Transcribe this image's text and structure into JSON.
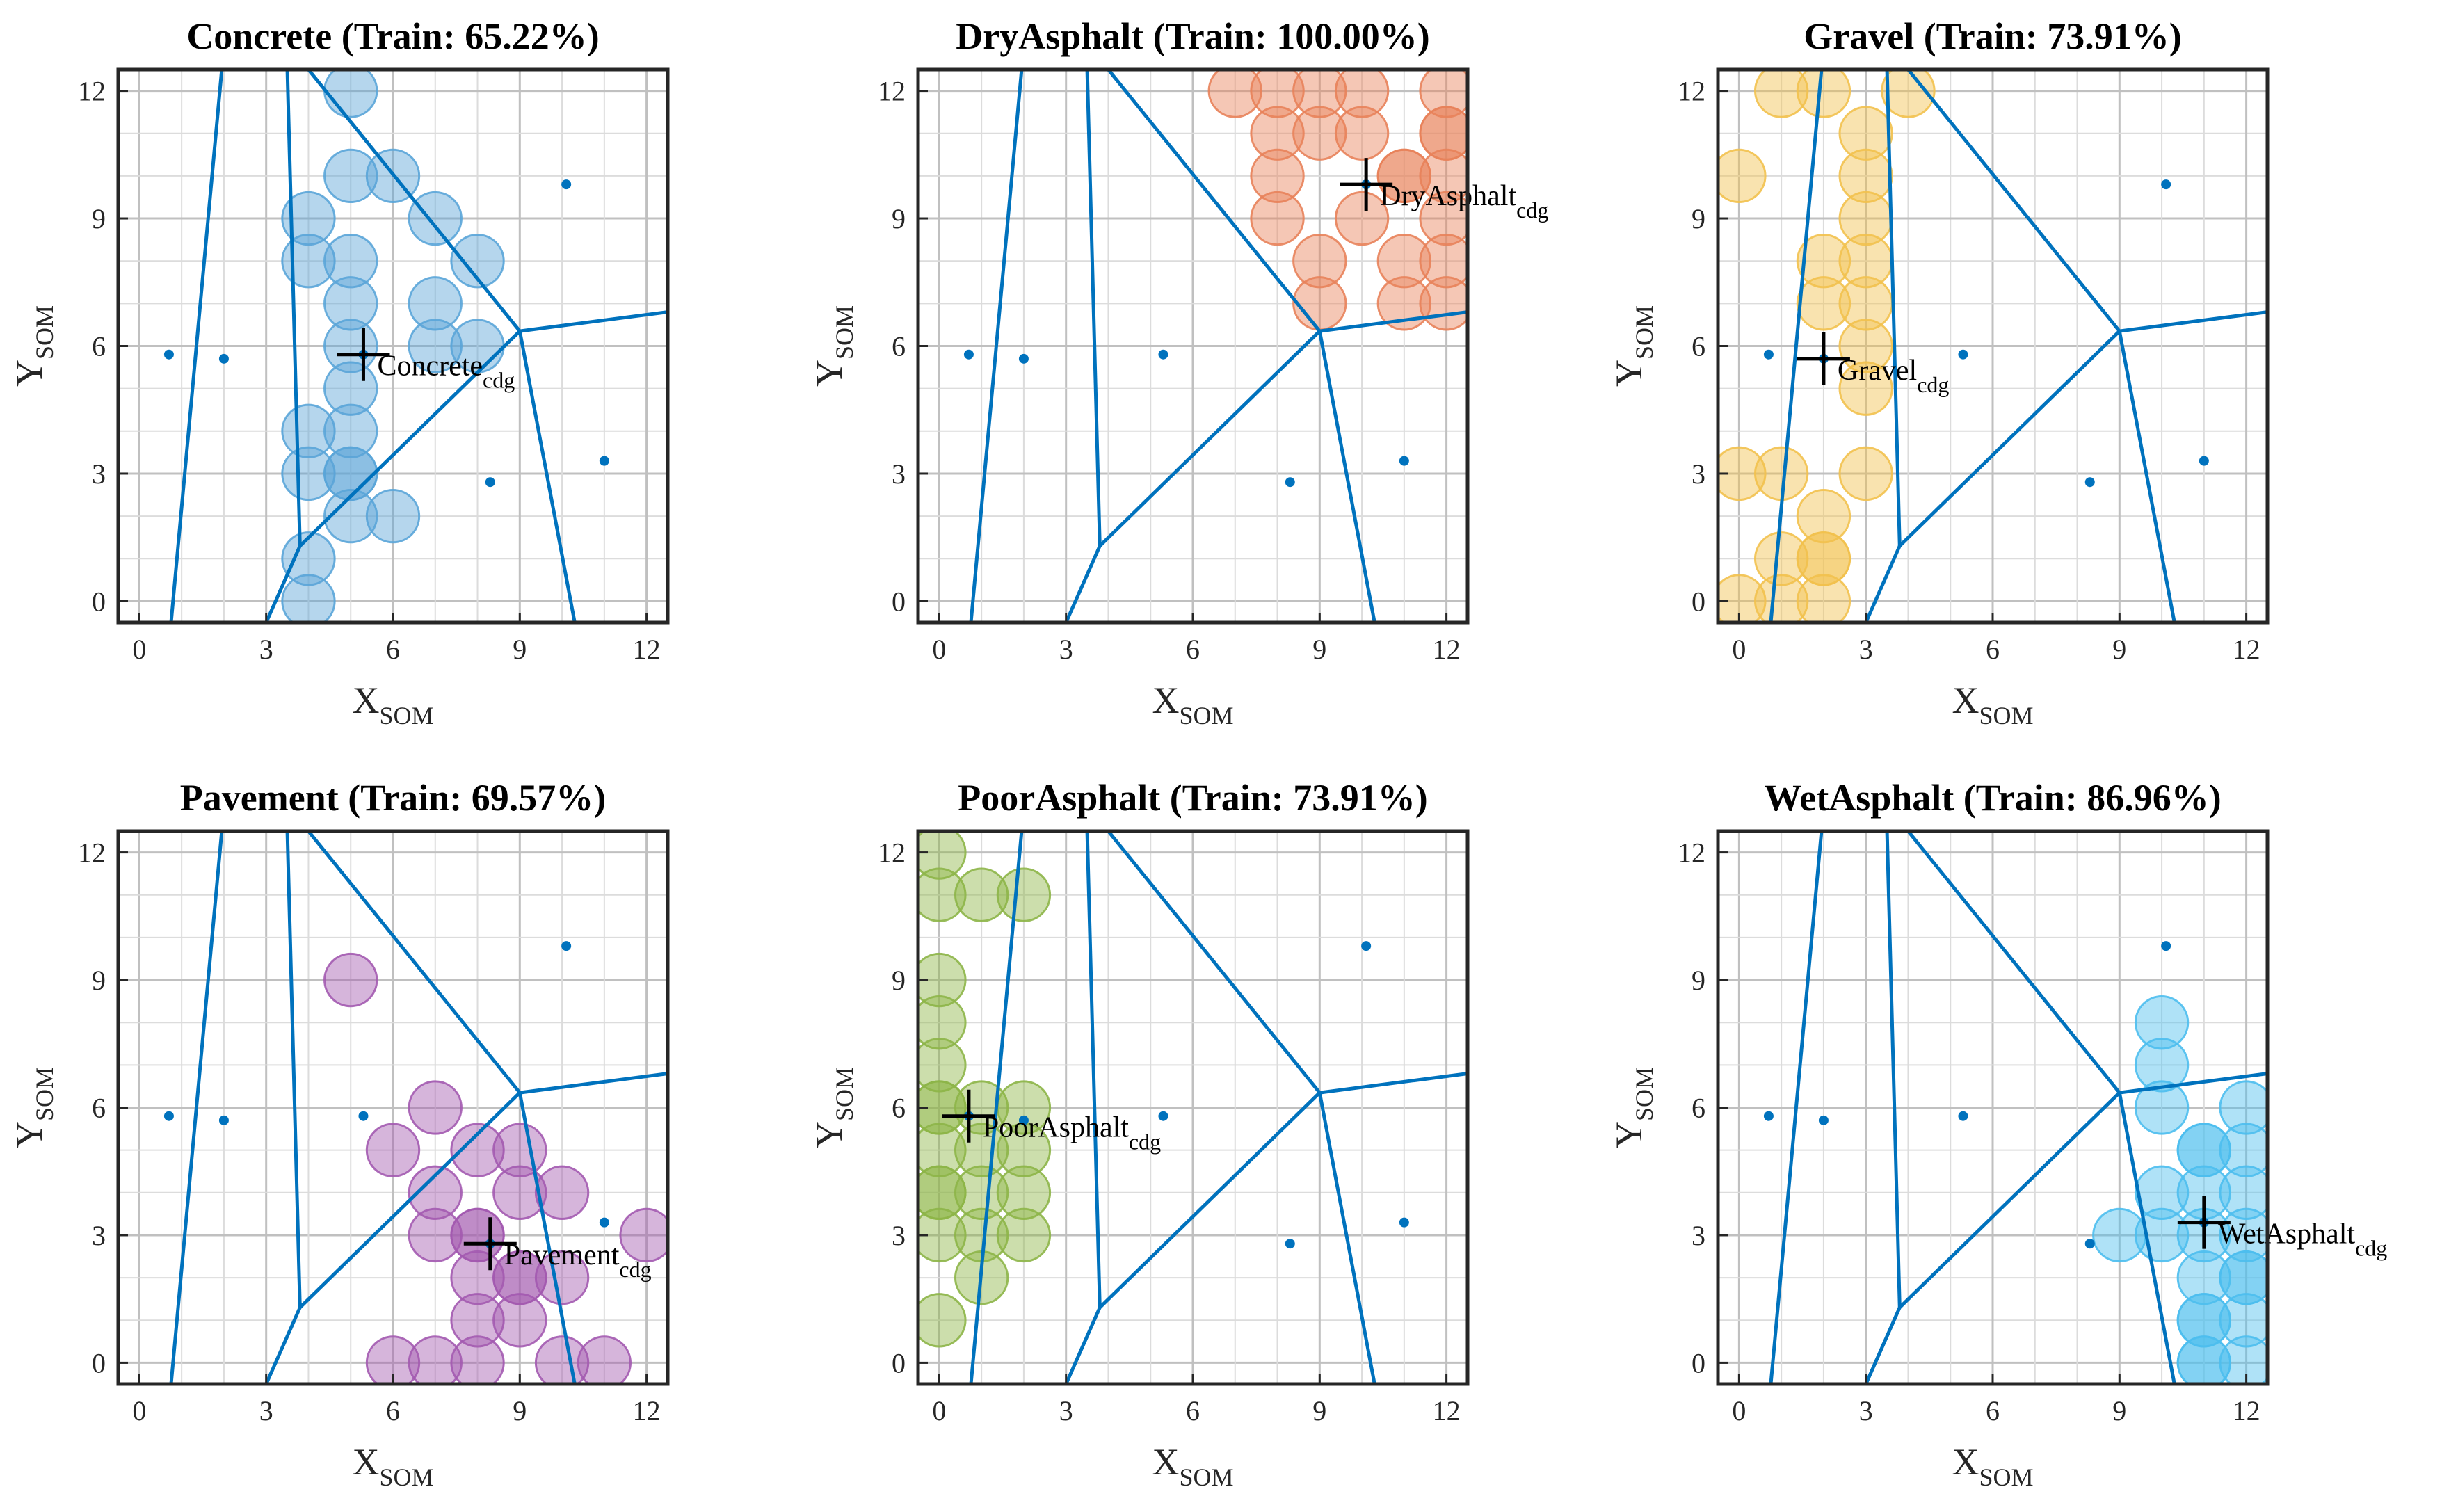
{
  "figure": {
    "x_axis_label": "X",
    "x_axis_sub": "SOM",
    "y_axis_label": "Y",
    "y_axis_sub": "SOM",
    "cdg_sub": "cdg"
  },
  "chart_data": [
    {
      "type": "scatter",
      "title": "Concrete (Train: 65.22%)",
      "series_label": "Concrete",
      "color": "#5AA5D8",
      "xlim": [
        -0.5,
        12.5
      ],
      "ylim": [
        -0.5,
        12.5
      ],
      "xticks": [
        0,
        3,
        6,
        9,
        12
      ],
      "yticks": [
        0,
        3,
        6,
        9,
        12
      ],
      "grid": true,
      "centroid": [
        5.3,
        5.8
      ],
      "points": [
        [
          5,
          12
        ],
        [
          5,
          10
        ],
        [
          6,
          10
        ],
        [
          4,
          9
        ],
        [
          7,
          9
        ],
        [
          4,
          8
        ],
        [
          5,
          8
        ],
        [
          8,
          8
        ],
        [
          5,
          7
        ],
        [
          7,
          7
        ],
        [
          5,
          6
        ],
        [
          7,
          6
        ],
        [
          8,
          6
        ],
        [
          5,
          5
        ],
        [
          4,
          4
        ],
        [
          5,
          4
        ],
        [
          4,
          3
        ],
        [
          5,
          3
        ],
        [
          5,
          3
        ],
        [
          6,
          2
        ],
        [
          5,
          2
        ],
        [
          4,
          1
        ],
        [
          4,
          0
        ]
      ]
    },
    {
      "type": "scatter",
      "title": "DryAsphalt (Train: 100.00%)",
      "series_label": "DryAsphalt",
      "color": "#E8825A",
      "xlim": [
        -0.5,
        12.5
      ],
      "ylim": [
        -0.5,
        12.5
      ],
      "xticks": [
        0,
        3,
        6,
        9,
        12
      ],
      "yticks": [
        0,
        3,
        6,
        9,
        12
      ],
      "grid": true,
      "centroid": [
        10.1,
        9.8
      ],
      "points": [
        [
          7,
          12
        ],
        [
          8,
          12
        ],
        [
          9,
          12
        ],
        [
          10,
          12
        ],
        [
          12,
          12
        ],
        [
          8,
          11
        ],
        [
          9,
          11
        ],
        [
          10,
          11
        ],
        [
          12,
          11
        ],
        [
          12,
          11
        ],
        [
          8,
          10
        ],
        [
          11,
          10
        ],
        [
          11,
          10
        ],
        [
          12,
          10
        ],
        [
          8,
          9
        ],
        [
          10,
          9
        ],
        [
          12,
          9
        ],
        [
          9,
          8
        ],
        [
          11,
          8
        ],
        [
          12,
          8
        ],
        [
          9,
          7
        ],
        [
          11,
          7
        ],
        [
          12,
          7
        ]
      ]
    },
    {
      "type": "scatter",
      "title": "Gravel (Train: 73.91%)",
      "series_label": "Gravel",
      "color": "#F2C14E",
      "xlim": [
        -0.5,
        12.5
      ],
      "ylim": [
        -0.5,
        12.5
      ],
      "xticks": [
        0,
        3,
        6,
        9,
        12
      ],
      "yticks": [
        0,
        3,
        6,
        9,
        12
      ],
      "grid": true,
      "centroid": [
        2.0,
        5.7
      ],
      "points": [
        [
          1,
          12
        ],
        [
          2,
          12
        ],
        [
          4,
          12
        ],
        [
          3,
          11
        ],
        [
          0,
          10
        ],
        [
          3,
          10
        ],
        [
          3,
          9
        ],
        [
          2,
          8
        ],
        [
          3,
          8
        ],
        [
          2,
          7
        ],
        [
          3,
          7
        ],
        [
          3,
          6
        ],
        [
          3,
          5
        ],
        [
          0,
          3
        ],
        [
          1,
          3
        ],
        [
          3,
          3
        ],
        [
          2,
          2
        ],
        [
          1,
          1
        ],
        [
          2,
          1
        ],
        [
          2,
          1
        ],
        [
          0,
          0
        ],
        [
          1,
          0
        ],
        [
          2,
          0
        ]
      ]
    },
    {
      "type": "scatter",
      "title": "Pavement (Train: 69.57%)",
      "series_label": "Pavement",
      "color": "#A35AB0",
      "xlim": [
        -0.5,
        12.5
      ],
      "ylim": [
        -0.5,
        12.5
      ],
      "xticks": [
        0,
        3,
        6,
        9,
        12
      ],
      "yticks": [
        0,
        3,
        6,
        9,
        12
      ],
      "grid": true,
      "centroid": [
        8.3,
        2.8
      ],
      "points": [
        [
          5,
          9
        ],
        [
          7,
          6
        ],
        [
          6,
          5
        ],
        [
          8,
          5
        ],
        [
          9,
          5
        ],
        [
          7,
          4
        ],
        [
          9,
          4
        ],
        [
          10,
          4
        ],
        [
          7,
          3
        ],
        [
          8,
          3
        ],
        [
          8,
          3
        ],
        [
          12,
          3
        ],
        [
          8,
          2
        ],
        [
          9,
          2
        ],
        [
          9,
          2
        ],
        [
          10,
          2
        ],
        [
          8,
          1
        ],
        [
          9,
          1
        ],
        [
          6,
          0
        ],
        [
          7,
          0
        ],
        [
          8,
          0
        ],
        [
          10,
          0
        ],
        [
          11,
          0
        ]
      ]
    },
    {
      "type": "scatter",
      "title": "PoorAsphalt (Train: 73.91%)",
      "series_label": "PoorAsphalt",
      "color": "#8DB548",
      "xlim": [
        -0.5,
        12.5
      ],
      "ylim": [
        -0.5,
        12.5
      ],
      "xticks": [
        0,
        3,
        6,
        9,
        12
      ],
      "yticks": [
        0,
        3,
        6,
        9,
        12
      ],
      "grid": true,
      "centroid": [
        0.7,
        5.8
      ],
      "points": [
        [
          0,
          12
        ],
        [
          0,
          11
        ],
        [
          1,
          11
        ],
        [
          2,
          11
        ],
        [
          0,
          9
        ],
        [
          0,
          8
        ],
        [
          0,
          7
        ],
        [
          0,
          6
        ],
        [
          0,
          6
        ],
        [
          1,
          6
        ],
        [
          2,
          6
        ],
        [
          0,
          5
        ],
        [
          1,
          5
        ],
        [
          2,
          5
        ],
        [
          0,
          4
        ],
        [
          0,
          4
        ],
        [
          1,
          4
        ],
        [
          2,
          4
        ],
        [
          0,
          3
        ],
        [
          1,
          3
        ],
        [
          2,
          3
        ],
        [
          1,
          2
        ],
        [
          0,
          1
        ]
      ]
    },
    {
      "type": "scatter",
      "title": "WetAsphalt (Train: 86.96%)",
      "series_label": "WetAsphalt",
      "color": "#4DBEEE",
      "xlim": [
        -0.5,
        12.5
      ],
      "ylim": [
        -0.5,
        12.5
      ],
      "xticks": [
        0,
        3,
        6,
        9,
        12
      ],
      "yticks": [
        0,
        3,
        6,
        9,
        12
      ],
      "grid": true,
      "centroid": [
        11.0,
        3.3
      ],
      "points": [
        [
          10,
          8
        ],
        [
          10,
          7
        ],
        [
          10,
          6
        ],
        [
          12,
          6
        ],
        [
          11,
          5
        ],
        [
          11,
          5
        ],
        [
          12,
          5
        ],
        [
          10,
          4
        ],
        [
          11,
          4
        ],
        [
          12,
          4
        ],
        [
          9,
          3
        ],
        [
          10,
          3
        ],
        [
          11,
          3
        ],
        [
          12,
          3
        ],
        [
          11,
          2
        ],
        [
          12,
          2
        ],
        [
          12,
          2
        ],
        [
          11,
          1
        ],
        [
          11,
          1
        ],
        [
          12,
          1
        ],
        [
          11,
          0
        ],
        [
          12,
          0
        ],
        [
          11,
          0
        ]
      ]
    }
  ],
  "voronoi": {
    "prototypes": [
      [
        0.7,
        5.8
      ],
      [
        2.0,
        5.7
      ],
      [
        5.3,
        5.8
      ],
      [
        10.1,
        9.8
      ],
      [
        8.3,
        2.8
      ],
      [
        11.0,
        3.3
      ]
    ],
    "segments": [
      [
        [
          0.75,
          -0.5
        ],
        [
          1.95,
          12.5
        ]
      ],
      [
        [
          3.5,
          12.5
        ],
        [
          3.8,
          1.3
        ]
      ],
      [
        [
          3.8,
          1.3
        ],
        [
          3.0,
          -0.5
        ]
      ],
      [
        [
          3.8,
          1.3
        ],
        [
          9.0,
          6.35
        ]
      ],
      [
        [
          9.0,
          6.35
        ],
        [
          10.3,
          -0.5
        ]
      ],
      [
        [
          9.0,
          6.35
        ],
        [
          12.5,
          6.8
        ]
      ],
      [
        [
          9.0,
          6.35
        ],
        [
          4.0,
          12.5
        ]
      ]
    ]
  }
}
